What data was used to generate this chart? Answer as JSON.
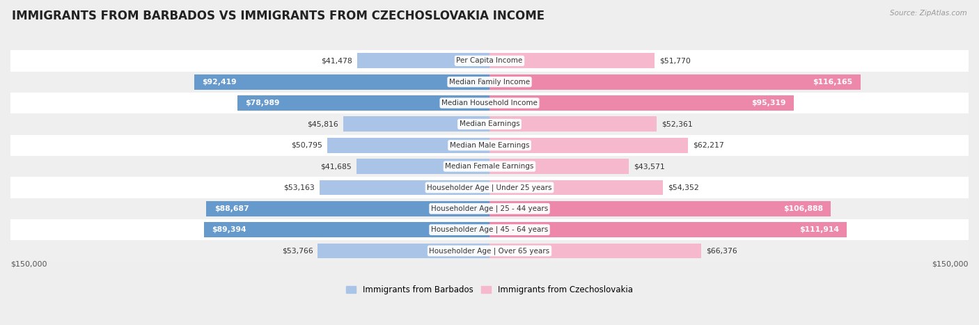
{
  "title": "IMMIGRANTS FROM BARBADOS VS IMMIGRANTS FROM CZECHOSLOVAKIA INCOME",
  "source": "Source: ZipAtlas.com",
  "categories": [
    "Per Capita Income",
    "Median Family Income",
    "Median Household Income",
    "Median Earnings",
    "Median Male Earnings",
    "Median Female Earnings",
    "Householder Age | Under 25 years",
    "Householder Age | 25 - 44 years",
    "Householder Age | 45 - 64 years",
    "Householder Age | Over 65 years"
  ],
  "barbados_values": [
    41478,
    92419,
    78989,
    45816,
    50795,
    41685,
    53163,
    88687,
    89394,
    53766
  ],
  "czechoslovakia_values": [
    51770,
    116165,
    95319,
    52361,
    62217,
    43571,
    54352,
    106888,
    111914,
    66376
  ],
  "barbados_labels": [
    "$41,478",
    "$92,419",
    "$78,989",
    "$45,816",
    "$50,795",
    "$41,685",
    "$53,163",
    "$88,687",
    "$89,394",
    "$53,766"
  ],
  "czechoslovakia_labels": [
    "$51,770",
    "$116,165",
    "$95,319",
    "$52,361",
    "$62,217",
    "$43,571",
    "$54,352",
    "$106,888",
    "$111,914",
    "$66,376"
  ],
  "barbados_color_light": "#aac4e8",
  "barbados_color_dark": "#6699cc",
  "czechoslovakia_color_light": "#f5b8cc",
  "czechoslovakia_color_dark": "#ee88aa",
  "barbados_threshold": 60000,
  "czechoslovakia_threshold": 85000,
  "max_value": 150000,
  "xlabel_left": "$150,000",
  "xlabel_right": "$150,000",
  "legend_barbados": "Immigrants from Barbados",
  "legend_czechoslovakia": "Immigrants from Czechoslovakia",
  "row_colors": [
    "#ffffff",
    "#efefef"
  ],
  "title_fontsize": 12,
  "label_fontsize": 7.8,
  "category_fontsize": 7.5
}
